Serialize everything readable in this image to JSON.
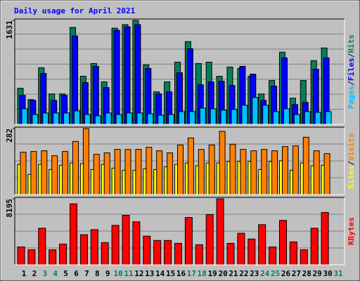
{
  "chart_data": [
    {
      "type": "bar",
      "title": "Daily usage for April 2021",
      "series": [
        {
          "name": "Hits",
          "color": "#00805c",
          "values": [
            566,
            388,
            888,
            477,
            477,
            1520,
            754,
            954,
            666,
            1509,
            1565,
            1631,
            932,
            510,
            666,
            976,
            1298,
            954,
            976,
            754,
            899,
            877,
            754,
            477,
            688,
            1132,
            411,
            688,
            999,
            1198,
            null
          ]
        },
        {
          "name": "Files",
          "color": "#0000ff",
          "values": [
            455,
            377,
            799,
            377,
            455,
            1387,
            655,
            910,
            577,
            1476,
            1531,
            1565,
            877,
            477,
            510,
            810,
            1187,
            621,
            666,
            677,
            610,
            910,
            788,
            377,
            599,
            1043,
            311,
            344,
            865,
            1043,
            null
          ]
        },
        {
          "name": "Pages",
          "color": "#00c0ff",
          "values": [
            244,
            155,
            178,
            178,
            178,
            211,
            155,
            133,
            178,
            155,
            178,
            178,
            166,
            144,
            155,
            200,
            200,
            255,
            244,
            222,
            233,
            300,
            422,
            300,
            200,
            244,
            155,
            200,
            189,
            200,
            null
          ]
        }
      ],
      "legend_reversed": true,
      "legend_separator": "/",
      "ylim": [
        0,
        1631
      ],
      "yticks": [
        1631
      ]
    },
    {
      "type": "bar",
      "series": [
        {
          "name": "Sites",
          "color": "#ffff00",
          "values": [
            129,
            86,
            129,
            107,
            125,
            135,
            132,
            107,
            129,
            113,
            104,
            104,
            110,
            107,
            119,
            129,
            135,
            123,
            135,
            135,
            141,
            141,
            141,
            107,
            141,
            144,
            104,
            135,
            123,
            125,
            null
          ]
        },
        {
          "name": "Visits",
          "color": "#ff8000",
          "values": [
            181,
            184,
            187,
            166,
            184,
            227,
            282,
            172,
            178,
            193,
            193,
            193,
            202,
            187,
            178,
            212,
            242,
            193,
            212,
            270,
            215,
            193,
            187,
            193,
            187,
            205,
            208,
            245,
            187,
            175,
            null
          ]
        }
      ],
      "legend_reversed": false,
      "legend_separator": "/",
      "ylim": [
        0,
        282
      ],
      "yticks": [
        282
      ]
    },
    {
      "type": "bar",
      "categories": [
        "1",
        "2",
        "3",
        "4",
        "5",
        "6",
        "7",
        "8",
        "9",
        "10",
        "11",
        "12",
        "13",
        "14",
        "15",
        "16",
        "17",
        "18",
        "19",
        "20",
        "21",
        "22",
        "23",
        "24",
        "25",
        "26",
        "27",
        "28",
        "29",
        "30",
        "31"
      ],
      "category_colors": [
        "#000000",
        "#000000",
        "#00805c",
        "#00805c",
        "#000000",
        "#000000",
        "#000000",
        "#000000",
        "#000000",
        "#00805c",
        "#00805c",
        "#000000",
        "#000000",
        "#000000",
        "#000000",
        "#000000",
        "#00805c",
        "#00805c",
        "#000000",
        "#000000",
        "#000000",
        "#000000",
        "#000000",
        "#00805c",
        "#00805c",
        "#000000",
        "#000000",
        "#000000",
        "#000000",
        "#000000",
        "#00805c"
      ],
      "series": [
        {
          "name": "KBytes",
          "color": "#ff0000",
          "values": [
            2227,
            1871,
            4543,
            1871,
            2583,
            7572,
            3741,
            4365,
            2761,
            4899,
            6146,
            5345,
            3563,
            3029,
            3029,
            2672,
            5879,
            2494,
            6235,
            8195,
            2672,
            3919,
            3207,
            4988,
            2227,
            5523,
            2850,
            1871,
            4543,
            6502,
            null
          ]
        }
      ],
      "legend_reversed": false,
      "legend_separator": "/",
      "ylim": [
        0,
        8195
      ],
      "yticks": [
        8195
      ]
    }
  ]
}
